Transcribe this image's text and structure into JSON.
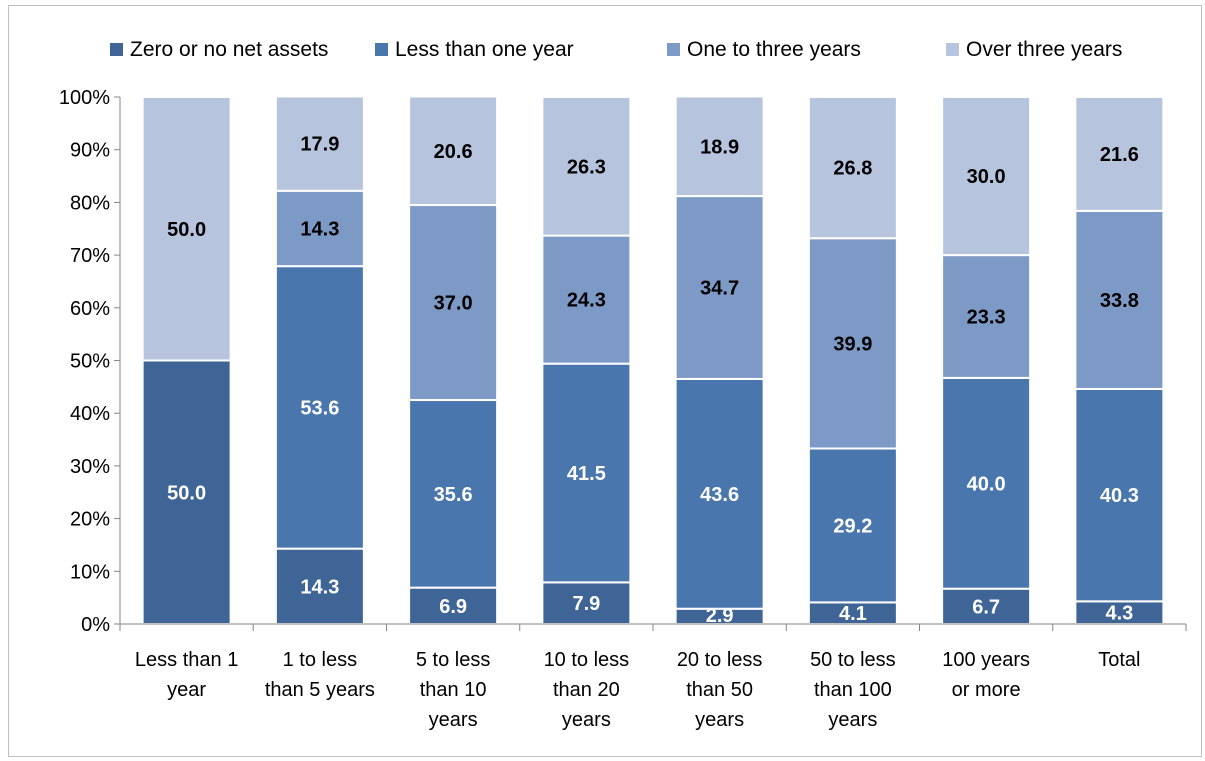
{
  "chart_data": {
    "type": "bar",
    "stacked": true,
    "categories": [
      [
        "Less than 1",
        "year"
      ],
      [
        "1 to less",
        "than 5 years"
      ],
      [
        "5 to less",
        "than 10",
        "years"
      ],
      [
        "10 to less",
        "than 20",
        "years"
      ],
      [
        "20 to less",
        "than 50",
        "years"
      ],
      [
        "50 to less",
        "than 100",
        "years"
      ],
      [
        "100 years",
        "or more"
      ],
      [
        "Total"
      ]
    ],
    "series": [
      {
        "name": "Zero or no net assets",
        "color": "#3f6596",
        "label_color": "#ffffff",
        "values": [
          50.0,
          14.3,
          6.9,
          7.9,
          2.9,
          4.1,
          6.7,
          4.3
        ]
      },
      {
        "name": "Less than one year",
        "color": "#4a76ae",
        "label_color": "#ffffff",
        "values": [
          0,
          53.6,
          35.6,
          41.5,
          43.6,
          29.2,
          40.0,
          40.3
        ]
      },
      {
        "name": "One to three years",
        "color": "#7d9ac7",
        "label_color": "#000000",
        "values": [
          0,
          14.3,
          37.0,
          24.3,
          34.7,
          39.9,
          23.3,
          33.8
        ]
      },
      {
        "name": "Over three years",
        "color": "#b7c4dd",
        "label_color": "#000000",
        "values": [
          50.0,
          17.9,
          20.6,
          26.3,
          18.9,
          26.8,
          30.0,
          21.6
        ]
      }
    ],
    "ylim": [
      0,
      100
    ],
    "y_ticks": [
      "0%",
      "10%",
      "20%",
      "30%",
      "40%",
      "50%",
      "60%",
      "70%",
      "80%",
      "90%",
      "100%"
    ],
    "legend_position": "top",
    "grid": false
  }
}
